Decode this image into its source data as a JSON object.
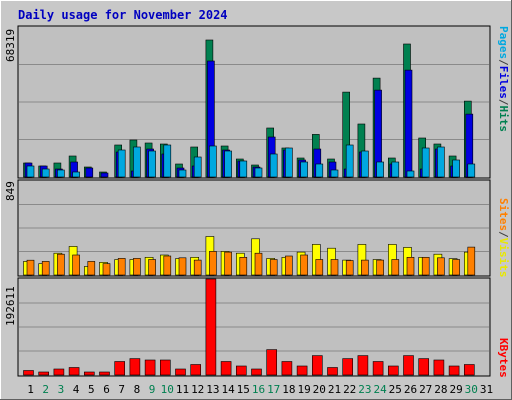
{
  "chart_data": {
    "type": "bar",
    "title": "Daily usage for November 2024",
    "categories": [
      "1",
      "2",
      "3",
      "4",
      "5",
      "6",
      "7",
      "8",
      "9",
      "10",
      "11",
      "12",
      "13",
      "14",
      "15",
      "16",
      "17",
      "18",
      "19",
      "20",
      "21",
      "22",
      "23",
      "24",
      "25",
      "26",
      "27",
      "28",
      "29",
      "30",
      "31"
    ],
    "weekend_days": [
      "2",
      "3",
      "9",
      "10",
      "16",
      "17",
      "23",
      "24",
      "30"
    ],
    "panels": [
      {
        "key": "top",
        "ymax_label": "68319",
        "ymax": 68319,
        "legend": [
          {
            "label": "Pages",
            "color": "#00a8e0"
          },
          {
            "label": "/",
            "color": "#404040"
          },
          {
            "label": "Files",
            "color": "#0000e0"
          },
          {
            "label": "/",
            "color": "#404040"
          },
          {
            "label": "Hits",
            "color": "#008050"
          }
        ],
        "series": [
          {
            "name": "Hits",
            "color": "#008050",
            "values": [
              6372,
              5006,
              6372,
              9557,
              4550,
              2275,
              14563,
              16838,
              15473,
              15018,
              5916,
              13653,
              62402,
              14108,
              8192,
              5461,
              22301,
              13198,
              8647,
              19417,
              8192,
              38681,
              24118,
              45054,
              8647,
              60582,
              17748,
              15018,
              9557,
              34585,
              0
            ]
          },
          {
            "name": "Files",
            "color": "#0000e0",
            "values": [
              6372,
              5006,
              3641,
              6827,
              4095,
              1820,
              11378,
              2730,
              12743,
              10469,
              4095,
              5006,
              52845,
              12288,
              7282,
              4550,
              18204,
              12288,
              7737,
              12743,
              6827,
              3641,
              11378,
              39592,
              5916,
              48694,
              3641,
              12743,
              5006,
              28669,
              0
            ]
          },
          {
            "name": "Pages",
            "color": "#00a8e0",
            "values": [
              5006,
              3641,
              3186,
              2275,
              0,
              0,
              12288,
              13653,
              11834,
              14563,
              3186,
              9102,
              14108,
              11834,
              7282,
              4095,
              10469,
              13198,
              6827,
              5916,
              3186,
              14563,
              11834,
              6827,
              6827,
              2730,
              13198,
              13653,
              7737,
              5916,
              0
            ]
          }
        ]
      },
      {
        "key": "middle",
        "ymax_label": "849",
        "ymax": 849,
        "legend": [
          {
            "label": "Sites",
            "color": "#ff8000"
          },
          {
            "label": "/",
            "color": "#404040"
          },
          {
            "label": "Visits",
            "color": "#e8e800"
          }
        ],
        "series": [
          {
            "name": "Visits",
            "color": "#ffff00",
            "values": [
              123,
              103,
              197,
              258,
              77,
              115,
              140,
              140,
              160,
              181,
              148,
              160,
              348,
              213,
              197,
              327,
              150,
              160,
              207,
              276,
              242,
              135,
              276,
              140,
              276,
              249,
              160,
              188,
              148,
              207,
              0
            ]
          },
          {
            "name": "Sites",
            "color": "#ff8000",
            "values": [
              134,
              123,
              188,
              181,
              123,
              103,
              150,
              150,
              140,
              172,
              155,
              135,
              213,
              207,
              160,
              197,
              140,
              172,
              181,
              140,
              140,
              131,
              135,
              135,
              140,
              160,
              160,
              155,
              140,
              252,
              0
            ]
          }
        ]
      },
      {
        "key": "bottom",
        "ymax_label": "192611",
        "ymax": 192611,
        "legend": [
          {
            "label": "KBytes",
            "color": "#ff0000"
          }
        ],
        "series": [
          {
            "name": "KBytes",
            "color": "#ff0000",
            "values": [
              9000,
              6000,
              12000,
              15000,
              6000,
              6000,
              27000,
              33000,
              30000,
              30000,
              12000,
              21000,
              192611,
              27000,
              18000,
              12000,
              51000,
              27000,
              18000,
              39000,
              15000,
              33000,
              39000,
              27000,
              18000,
              39000,
              33000,
              30000,
              18000,
              21000,
              0
            ]
          }
        ]
      }
    ]
  }
}
